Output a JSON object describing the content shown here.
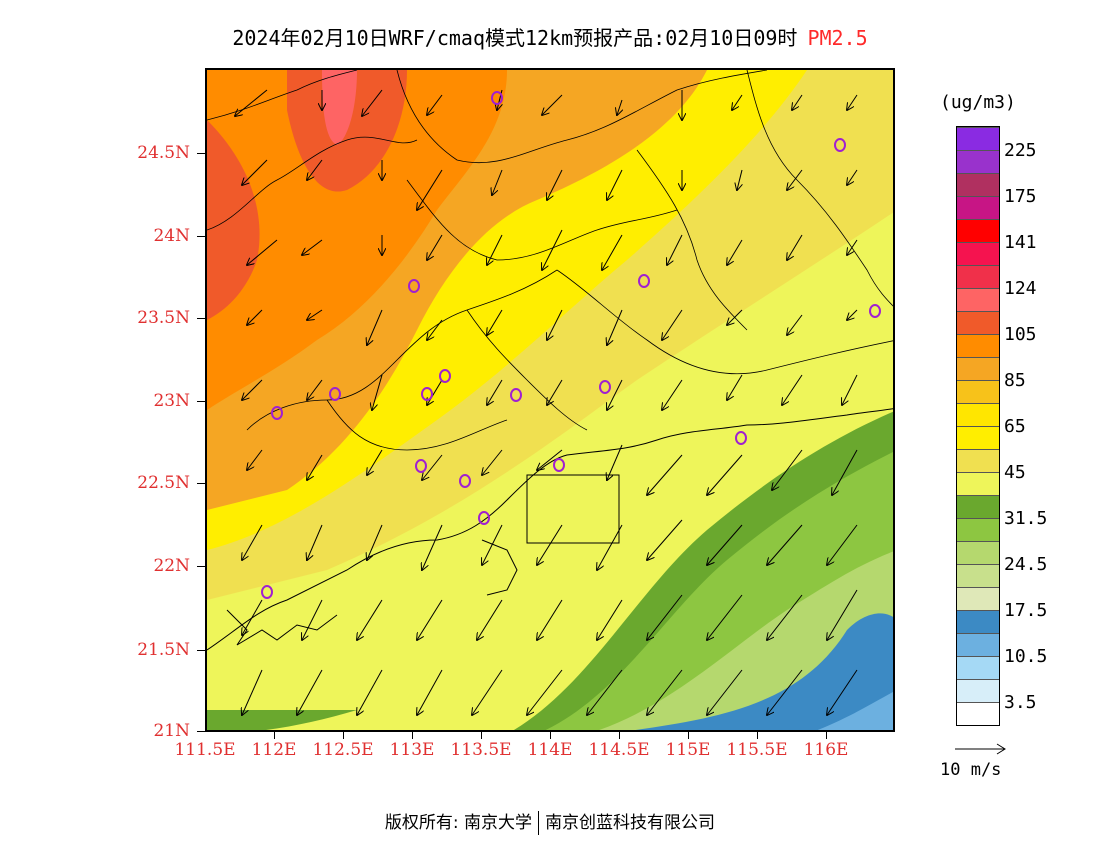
{
  "title": {
    "main": "2024年02月10日WRF/cmaq模式12km预报产品:02月10日09时",
    "species": "PM2.5"
  },
  "axes": {
    "y_labels": [
      "24.5N",
      "24N",
      "23.5N",
      "23N",
      "22.5N",
      "22N",
      "21.5N",
      "21N"
    ],
    "x_labels": [
      "111.5E",
      "112E",
      "112.5E",
      "113E",
      "113.5E",
      "114E",
      "114.5E",
      "115E",
      "115.5E",
      "116E"
    ]
  },
  "legend": {
    "unit": "(ug/m3)",
    "labels": [
      "225",
      "175",
      "141",
      "124",
      "105",
      "85",
      "65",
      "45",
      "31.5",
      "24.5",
      "17.5",
      "10.5",
      "3.5"
    ],
    "colors": [
      "#8a2be2",
      "#9932cc",
      "#b03060",
      "#c71585",
      "#ff0000",
      "#f5134f",
      "#f0304a",
      "#fe6464",
      "#f05a2a",
      "#ff8c00",
      "#f5a623",
      "#f7c21a",
      "#ffe600",
      "#ffee00",
      "#f0e050",
      "#eef55a",
      "#6aa82e",
      "#8dc641",
      "#b5d86e",
      "#c8e08c",
      "#dfe8b8",
      "#3c8ac4",
      "#6cb0e0",
      "#a5d9f5",
      "#d7eef9",
      "#ffffff"
    ]
  },
  "wind_reference": {
    "label": "10 m/s"
  },
  "copyright": {
    "left": "版权所有: 南京大学",
    "right": "南京创蓝科技有限公司"
  }
}
